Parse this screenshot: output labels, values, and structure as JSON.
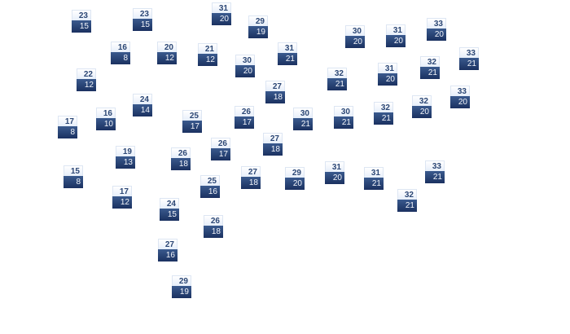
{
  "colors": {
    "high_bg": "#eef3fb",
    "high_text": "#2c4775",
    "low_bg": "#22396a",
    "low_text": "#f2f5fb"
  },
  "stations": [
    {
      "high": "23",
      "low": "15"
    },
    {
      "high": "23",
      "low": "15"
    },
    {
      "high": "31",
      "low": "20"
    },
    {
      "high": "29",
      "low": "19"
    },
    {
      "high": "16",
      "low": "8"
    },
    {
      "high": "20",
      "low": "12"
    },
    {
      "high": "21",
      "low": "12"
    },
    {
      "high": "30",
      "low": "20"
    },
    {
      "high": "31",
      "low": "21"
    },
    {
      "high": "22",
      "low": "12"
    },
    {
      "high": "27",
      "low": "18"
    },
    {
      "high": "24",
      "low": "14"
    },
    {
      "high": "16",
      "low": "10"
    },
    {
      "high": "17",
      "low": "8"
    },
    {
      "high": "25",
      "low": "17"
    },
    {
      "high": "26",
      "low": "17"
    },
    {
      "high": "30",
      "low": "21"
    },
    {
      "high": "27",
      "low": "18"
    },
    {
      "high": "26",
      "low": "17"
    },
    {
      "high": "19",
      "low": "13"
    },
    {
      "high": "26",
      "low": "18"
    },
    {
      "high": "15",
      "low": "8"
    },
    {
      "high": "27",
      "low": "18"
    },
    {
      "high": "29",
      "low": "20"
    },
    {
      "high": "31",
      "low": "20"
    },
    {
      "high": "31",
      "low": "21"
    },
    {
      "high": "33",
      "low": "21"
    },
    {
      "high": "25",
      "low": "16"
    },
    {
      "high": "17",
      "low": "12"
    },
    {
      "high": "32",
      "low": "21"
    },
    {
      "high": "24",
      "low": "15"
    },
    {
      "high": "26",
      "low": "18"
    },
    {
      "high": "27",
      "low": "16"
    },
    {
      "high": "29",
      "low": "19"
    },
    {
      "high": "30",
      "low": "20"
    },
    {
      "high": "31",
      "low": "20"
    },
    {
      "high": "33",
      "low": "20"
    },
    {
      "high": "33",
      "low": "21"
    },
    {
      "high": "32",
      "low": "21"
    },
    {
      "high": "31",
      "low": "20"
    },
    {
      "high": "32",
      "low": "21"
    },
    {
      "high": "33",
      "low": "20"
    },
    {
      "high": "30",
      "low": "21"
    },
    {
      "high": "32",
      "low": "21"
    },
    {
      "high": "32",
      "low": "20"
    }
  ]
}
